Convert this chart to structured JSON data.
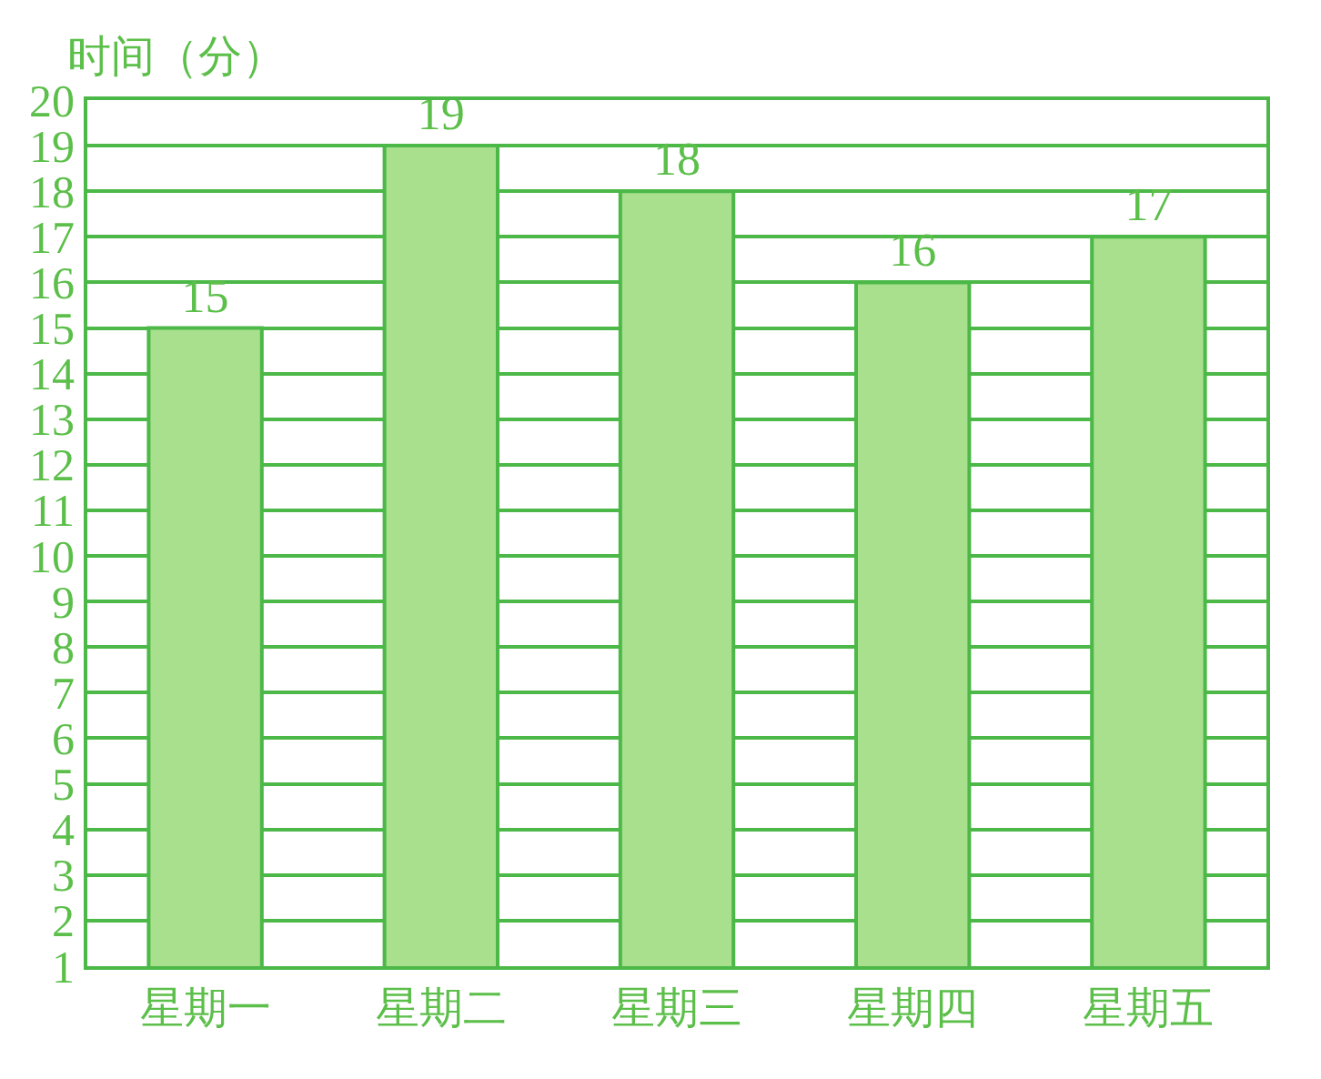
{
  "chart_data": {
    "type": "bar",
    "ylabel": "时间（分）",
    "categories": [
      "星期一",
      "星期二",
      "星期三",
      "星期四",
      "星期五"
    ],
    "values": [
      15,
      19,
      18,
      16,
      17
    ],
    "color": "#a8e08e",
    "data_labels": true,
    "ylim": [
      1,
      20
    ],
    "yticks": [
      1,
      2,
      3,
      4,
      5,
      6,
      7,
      8,
      9,
      10,
      11,
      12,
      13,
      14,
      15,
      16,
      17,
      18,
      19,
      20
    ],
    "grid": "y"
  }
}
